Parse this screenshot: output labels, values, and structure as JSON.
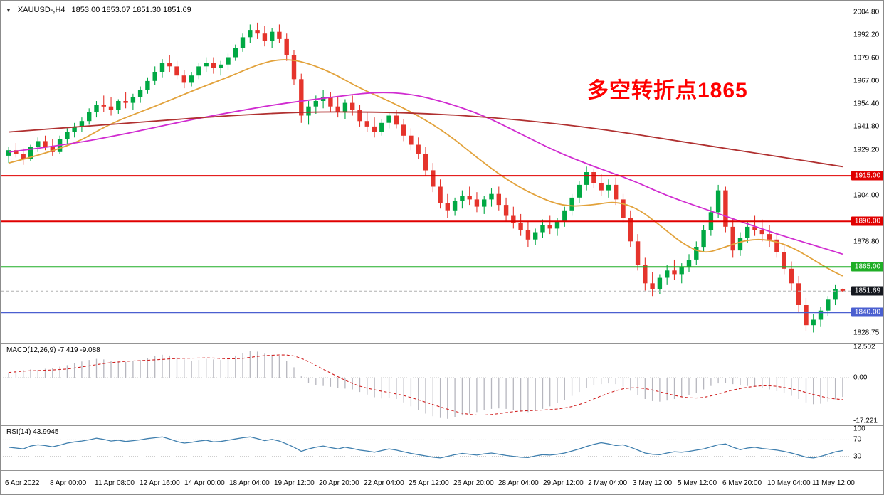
{
  "header": {
    "symbol_period": "XAUUSD-,H4",
    "ohlc": "1853.00 1853.07 1851.30 1851.69"
  },
  "annotation": {
    "text": "多空转折点1865",
    "color": "#ff0000"
  },
  "colors": {
    "up_candle": "#00a843",
    "down_candle": "#e5342c",
    "current_price_line": "#b0b0b0",
    "separator": "#949494",
    "level_dotted": "#c8c8c8"
  },
  "chart_data": {
    "type": "candlestick",
    "title": "XAUUSD- H4 gold chart with MACD and RSI",
    "timeframe": "H4",
    "symbol": "XAUUSD-",
    "last_ohlc": {
      "open": 1853.0,
      "high": 1853.07,
      "low": 1851.3,
      "close": 1851.69
    },
    "current_price": 1851.69,
    "y_axis": {
      "max": 2004.8,
      "min": 1826.0,
      "tick_step": 12.6,
      "plain_labels": [
        2004.8,
        1992.2,
        1979.6,
        1967.0,
        1954.4,
        1941.8,
        1929.2,
        1904.0,
        1878.8,
        1828.75
      ]
    },
    "x_ticks": [
      "6 Apr 2022",
      "8 Apr 00:00",
      "11 Apr 08:00",
      "12 Apr 16:00",
      "14 Apr 00:00",
      "18 Apr 04:00",
      "19 Apr 12:00",
      "20 Apr 20:00",
      "22 Apr 04:00",
      "25 Apr 12:00",
      "26 Apr 20:00",
      "28 Apr 04:00",
      "29 Apr 12:00",
      "2 May 04:00",
      "3 May 12:00",
      "5 May 12:00",
      "6 May 20:00",
      "10 May 04:00",
      "11 May 12:00"
    ],
    "candles": [
      [
        1926,
        1931,
        1922,
        1929
      ],
      [
        1929,
        1933,
        1925,
        1927
      ],
      [
        1927,
        1930,
        1921,
        1924
      ],
      [
        1924,
        1932,
        1923,
        1931
      ],
      [
        1931,
        1936,
        1928,
        1934
      ],
      [
        1934,
        1937,
        1929,
        1931
      ],
      [
        1931,
        1935,
        1926,
        1928
      ],
      [
        1928,
        1937,
        1927,
        1935
      ],
      [
        1935,
        1941,
        1932,
        1939
      ],
      [
        1939,
        1944,
        1936,
        1942
      ],
      [
        1942,
        1947,
        1939,
        1945
      ],
      [
        1945,
        1952,
        1943,
        1950
      ],
      [
        1950,
        1956,
        1947,
        1954
      ],
      [
        1954,
        1959,
        1950,
        1953
      ],
      [
        1953,
        1958,
        1948,
        1951
      ],
      [
        1951,
        1957,
        1949,
        1956
      ],
      [
        1956,
        1961,
        1952,
        1955
      ],
      [
        1955,
        1960,
        1951,
        1958
      ],
      [
        1958,
        1964,
        1955,
        1962
      ],
      [
        1962,
        1969,
        1960,
        1967
      ],
      [
        1967,
        1975,
        1965,
        1972
      ],
      [
        1972,
        1979,
        1969,
        1977
      ],
      [
        1977,
        1981,
        1972,
        1975
      ],
      [
        1975,
        1978,
        1968,
        1970
      ],
      [
        1970,
        1973,
        1963,
        1966
      ],
      [
        1966,
        1972,
        1964,
        1970
      ],
      [
        1970,
        1977,
        1968,
        1975
      ],
      [
        1975,
        1980,
        1972,
        1977
      ],
      [
        1977,
        1980,
        1971,
        1974
      ],
      [
        1974,
        1978,
        1970,
        1976
      ],
      [
        1976,
        1982,
        1973,
        1980
      ],
      [
        1980,
        1987,
        1978,
        1985
      ],
      [
        1985,
        1993,
        1983,
        1991
      ],
      [
        1991,
        1998,
        1988,
        1995
      ],
      [
        1995,
        1999,
        1990,
        1993
      ],
      [
        1993,
        1997,
        1986,
        1989
      ],
      [
        1989,
        1996,
        1985,
        1994
      ],
      [
        1994,
        1998,
        1988,
        1990
      ],
      [
        1990,
        1993,
        1978,
        1981
      ],
      [
        1981,
        1984,
        1965,
        1968
      ],
      [
        1968,
        1971,
        1944,
        1948
      ],
      [
        1948,
        1956,
        1943,
        1953
      ],
      [
        1953,
        1959,
        1949,
        1956
      ],
      [
        1956,
        1962,
        1952,
        1958
      ],
      [
        1958,
        1961,
        1950,
        1953
      ],
      [
        1953,
        1958,
        1947,
        1950
      ],
      [
        1950,
        1957,
        1946,
        1955
      ],
      [
        1955,
        1959,
        1948,
        1951
      ],
      [
        1951,
        1954,
        1942,
        1945
      ],
      [
        1945,
        1950,
        1939,
        1942
      ],
      [
        1942,
        1947,
        1936,
        1939
      ],
      [
        1939,
        1946,
        1937,
        1944
      ],
      [
        1944,
        1950,
        1941,
        1948
      ],
      [
        1948,
        1951,
        1941,
        1943
      ],
      [
        1943,
        1946,
        1934,
        1937
      ],
      [
        1937,
        1941,
        1929,
        1932
      ],
      [
        1932,
        1936,
        1924,
        1927
      ],
      [
        1927,
        1931,
        1915,
        1918
      ],
      [
        1918,
        1922,
        1906,
        1909
      ],
      [
        1909,
        1913,
        1897,
        1900
      ],
      [
        1900,
        1905,
        1892,
        1896
      ],
      [
        1896,
        1903,
        1893,
        1901
      ],
      [
        1901,
        1907,
        1897,
        1904
      ],
      [
        1904,
        1909,
        1899,
        1902
      ],
      [
        1902,
        1906,
        1895,
        1898
      ],
      [
        1898,
        1904,
        1894,
        1902
      ],
      [
        1902,
        1908,
        1898,
        1905
      ],
      [
        1905,
        1909,
        1896,
        1899
      ],
      [
        1899,
        1903,
        1890,
        1893
      ],
      [
        1893,
        1898,
        1886,
        1889
      ],
      [
        1889,
        1894,
        1882,
        1885
      ],
      [
        1885,
        1890,
        1876,
        1880
      ],
      [
        1880,
        1886,
        1877,
        1884
      ],
      [
        1884,
        1891,
        1881,
        1888
      ],
      [
        1888,
        1893,
        1883,
        1886
      ],
      [
        1886,
        1892,
        1882,
        1890
      ],
      [
        1890,
        1898,
        1887,
        1896
      ],
      [
        1896,
        1905,
        1893,
        1903
      ],
      [
        1903,
        1912,
        1900,
        1910
      ],
      [
        1910,
        1920,
        1907,
        1917
      ],
      [
        1917,
        1919,
        1908,
        1911
      ],
      [
        1911,
        1916,
        1904,
        1907
      ],
      [
        1907,
        1913,
        1903,
        1910
      ],
      [
        1910,
        1914,
        1899,
        1902
      ],
      [
        1902,
        1905,
        1889,
        1892
      ],
      [
        1892,
        1896,
        1876,
        1879
      ],
      [
        1879,
        1883,
        1863,
        1866
      ],
      [
        1866,
        1870,
        1852,
        1856
      ],
      [
        1856,
        1862,
        1849,
        1853
      ],
      [
        1853,
        1861,
        1850,
        1859
      ],
      [
        1859,
        1866,
        1855,
        1863
      ],
      [
        1863,
        1869,
        1858,
        1861
      ],
      [
        1861,
        1867,
        1856,
        1865
      ],
      [
        1865,
        1872,
        1862,
        1869
      ],
      [
        1869,
        1879,
        1866,
        1876
      ],
      [
        1876,
        1888,
        1873,
        1885
      ],
      [
        1885,
        1898,
        1882,
        1895
      ],
      [
        1895,
        1910,
        1892,
        1907
      ],
      [
        1907,
        1909,
        1884,
        1887
      ],
      [
        1887,
        1892,
        1870,
        1874
      ],
      [
        1874,
        1884,
        1871,
        1881
      ],
      [
        1881,
        1890,
        1878,
        1887
      ],
      [
        1887,
        1893,
        1882,
        1885
      ],
      [
        1885,
        1891,
        1879,
        1883
      ],
      [
        1883,
        1888,
        1876,
        1880
      ],
      [
        1880,
        1884,
        1870,
        1873
      ],
      [
        1873,
        1877,
        1861,
        1864
      ],
      [
        1864,
        1868,
        1852,
        1856
      ],
      [
        1856,
        1860,
        1840,
        1844
      ],
      [
        1844,
        1848,
        1830,
        1833
      ],
      [
        1833,
        1839,
        1829,
        1836
      ],
      [
        1836,
        1843,
        1832,
        1841
      ],
      [
        1841,
        1849,
        1838,
        1847
      ],
      [
        1847,
        1855,
        1844,
        1853
      ],
      [
        1853,
        1853.07,
        1851.3,
        1851.69
      ]
    ],
    "moving_averages": [
      {
        "name": "ma-fast-orange",
        "color": "#e2a23b",
        "points": [
          [
            0,
            1922
          ],
          [
            8,
            1930
          ],
          [
            14,
            1944
          ],
          [
            20,
            1953
          ],
          [
            26,
            1963
          ],
          [
            30,
            1969
          ],
          [
            34,
            1976
          ],
          [
            37,
            1979
          ],
          [
            40,
            1978
          ],
          [
            44,
            1972
          ],
          [
            48,
            1963
          ],
          [
            52,
            1956
          ],
          [
            56,
            1948
          ],
          [
            60,
            1938
          ],
          [
            64,
            1925
          ],
          [
            68,
            1913
          ],
          [
            72,
            1904
          ],
          [
            76,
            1898
          ],
          [
            80,
            1899
          ],
          [
            83,
            1901
          ],
          [
            86,
            1897
          ],
          [
            89,
            1888
          ],
          [
            92,
            1878
          ],
          [
            95,
            1872
          ],
          [
            98,
            1876
          ],
          [
            101,
            1880
          ],
          [
            104,
            1880
          ],
          [
            107,
            1876
          ],
          [
            110,
            1869
          ],
          [
            112,
            1864
          ],
          [
            114,
            1860
          ]
        ]
      },
      {
        "name": "ma-medium-magenta",
        "color": "#d02bd0",
        "points": [
          [
            0,
            1928
          ],
          [
            8,
            1932
          ],
          [
            16,
            1938
          ],
          [
            24,
            1945
          ],
          [
            32,
            1951
          ],
          [
            38,
            1955
          ],
          [
            44,
            1958
          ],
          [
            50,
            1961
          ],
          [
            55,
            1960
          ],
          [
            60,
            1955
          ],
          [
            65,
            1948
          ],
          [
            70,
            1938
          ],
          [
            75,
            1928
          ],
          [
            80,
            1920
          ],
          [
            85,
            1913
          ],
          [
            90,
            1904
          ],
          [
            95,
            1897
          ],
          [
            100,
            1890
          ],
          [
            105,
            1883
          ],
          [
            110,
            1877
          ],
          [
            114,
            1872
          ]
        ]
      },
      {
        "name": "ma-slow-darkred",
        "color": "#b03030",
        "points": [
          [
            0,
            1939
          ],
          [
            10,
            1942
          ],
          [
            20,
            1945
          ],
          [
            30,
            1948
          ],
          [
            40,
            1950
          ],
          [
            50,
            1950
          ],
          [
            58,
            1949
          ],
          [
            66,
            1947
          ],
          [
            74,
            1944
          ],
          [
            82,
            1940
          ],
          [
            90,
            1935
          ],
          [
            98,
            1930
          ],
          [
            106,
            1925
          ],
          [
            114,
            1920
          ]
        ]
      }
    ],
    "hlines": [
      {
        "price": 1915.0,
        "color": "#e00000",
        "label": "1915.00"
      },
      {
        "price": 1890.0,
        "color": "#e00000",
        "label": "1890.00"
      },
      {
        "price": 1865.0,
        "color": "#1fae26",
        "label": "1865.00"
      },
      {
        "price": 1840.0,
        "color": "#4a5fd0",
        "label": "1840.00"
      }
    ],
    "price_badges": [
      {
        "text": "1915.00",
        "price": 1915.0,
        "bg": "#e00000"
      },
      {
        "text": "1890.00",
        "price": 1890.0,
        "bg": "#e00000"
      },
      {
        "text": "1865.00",
        "price": 1865.0,
        "bg": "#1fae26"
      },
      {
        "text": "1851.69",
        "price": 1851.69,
        "bg": "#15181f"
      },
      {
        "text": "1840.00",
        "price": 1840.0,
        "bg": "#4a5fd0"
      }
    ],
    "indicators": {
      "macd": {
        "label": "MACD(12,26,9)",
        "values_text": "-7.419 -9.088",
        "axis_labels": [
          [
            "12.502",
            12.502
          ],
          [
            "0.00",
            0
          ],
          [
            "-17.221",
            -17.221
          ]
        ],
        "scale_max": 12.502,
        "scale_min": -17.221,
        "hist_color": "#b6b6be",
        "signal_color": "#d02020",
        "histogram": [
          2.0,
          2.5,
          3.0,
          3.2,
          3.0,
          3.4,
          3.8,
          4.2,
          4.8,
          5.5,
          6.2,
          6.8,
          7.2,
          7.0,
          6.5,
          6.2,
          6.0,
          6.3,
          6.8,
          7.5,
          8.2,
          8.8,
          8.5,
          7.8,
          7.0,
          6.5,
          6.8,
          7.2,
          7.0,
          6.8,
          7.5,
          8.5,
          9.5,
          10.2,
          10.0,
          9.2,
          8.8,
          8.2,
          6.5,
          4.0,
          0.5,
          -2.0,
          -3.0,
          -3.2,
          -3.5,
          -4.0,
          -4.2,
          -4.5,
          -5.5,
          -6.5,
          -7.5,
          -8.0,
          -7.8,
          -8.2,
          -9.5,
          -11.0,
          -12.5,
          -13.8,
          -14.8,
          -15.5,
          -15.8,
          -15.2,
          -14.5,
          -13.8,
          -13.2,
          -12.5,
          -12.0,
          -11.8,
          -12.0,
          -12.5,
          -13.0,
          -13.2,
          -12.8,
          -12.0,
          -11.0,
          -9.8,
          -8.5,
          -7.0,
          -5.5,
          -4.0,
          -3.0,
          -2.5,
          -2.2,
          -2.5,
          -3.5,
          -5.0,
          -6.8,
          -8.2,
          -9.0,
          -9.2,
          -8.8,
          -8.2,
          -7.5,
          -6.8,
          -5.8,
          -4.5,
          -3.2,
          -2.2,
          -2.0,
          -2.5,
          -3.0,
          -3.2,
          -3.5,
          -4.0,
          -4.5,
          -5.2,
          -6.0,
          -7.0,
          -8.2,
          -9.5,
          -10.2,
          -10.0,
          -9.2,
          -8.3,
          -7.4
        ]
      },
      "rsi": {
        "label": "RSI(14)",
        "value_text": "43.9945",
        "color": "#3f7fae",
        "levels": [
          70,
          30
        ],
        "axis_labels": [
          [
            "100",
            100
          ],
          [
            "70",
            70
          ],
          [
            "30",
            30
          ]
        ],
        "values": [
          52,
          50,
          48,
          55,
          58,
          56,
          53,
          57,
          62,
          65,
          67,
          70,
          74,
          71,
          67,
          69,
          66,
          68,
          70,
          73,
          75,
          77,
          72,
          66,
          62,
          64,
          67,
          69,
          65,
          66,
          69,
          72,
          75,
          77,
          73,
          68,
          71,
          67,
          60,
          52,
          42,
          48,
          52,
          55,
          51,
          48,
          52,
          49,
          45,
          43,
          40,
          44,
          48,
          45,
          41,
          37,
          34,
          31,
          28,
          26,
          30,
          34,
          37,
          35,
          33,
          36,
          38,
          35,
          32,
          30,
          28,
          27,
          31,
          34,
          33,
          35,
          38,
          43,
          48,
          54,
          59,
          63,
          60,
          56,
          58,
          52,
          45,
          38,
          35,
          34,
          38,
          41,
          40,
          42,
          45,
          48,
          53,
          58,
          60,
          52,
          46,
          50,
          52,
          49,
          47,
          45,
          42,
          38,
          33,
          28,
          26,
          30,
          35,
          41,
          44
        ]
      }
    }
  }
}
